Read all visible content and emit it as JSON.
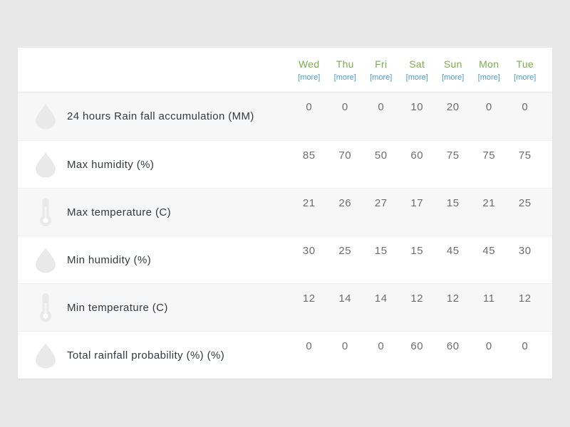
{
  "table": {
    "days": [
      {
        "label": "Wed",
        "more_label": "[more]"
      },
      {
        "label": "Thu",
        "more_label": "[more]"
      },
      {
        "label": "Fri",
        "more_label": "[more]"
      },
      {
        "label": "Sat",
        "more_label": "[more]"
      },
      {
        "label": "Sun",
        "more_label": "[more]"
      },
      {
        "label": "Mon",
        "more_label": "[more]"
      },
      {
        "label": "Tue",
        "more_label": "[more]"
      }
    ],
    "rows": [
      {
        "icon": "droplet-icon",
        "label": "24 hours Rain fall accumulation (MM)",
        "values": [
          "0",
          "0",
          "0",
          "10",
          "20",
          "0",
          "0"
        ]
      },
      {
        "icon": "droplet-icon",
        "label": "Max humidity (%)",
        "values": [
          "85",
          "70",
          "50",
          "60",
          "75",
          "75",
          "75"
        ]
      },
      {
        "icon": "thermometer-icon",
        "label": "Max temperature (C)",
        "values": [
          "21",
          "26",
          "27",
          "17",
          "15",
          "21",
          "25"
        ]
      },
      {
        "icon": "droplet-icon",
        "label": "Min humidity (%)",
        "values": [
          "30",
          "25",
          "15",
          "15",
          "45",
          "45",
          "30"
        ]
      },
      {
        "icon": "thermometer-icon",
        "label": "Min temperature (C)",
        "values": [
          "12",
          "14",
          "14",
          "12",
          "12",
          "11",
          "12"
        ]
      },
      {
        "icon": "droplet-icon",
        "label": "Total rainfall probability (%) (%)",
        "values": [
          "0",
          "0",
          "0",
          "60",
          "60",
          "0",
          "0"
        ]
      }
    ],
    "colors": {
      "day_name": "#7bae4e",
      "more_link": "#4a9cd3",
      "row_stripe": "#f7f7f7",
      "value_text": "#6d6d6d",
      "label_text": "#35393d",
      "icon": "#e9e9e9",
      "page_background": "#e8e8e8",
      "card_background": "#ffffff"
    }
  }
}
